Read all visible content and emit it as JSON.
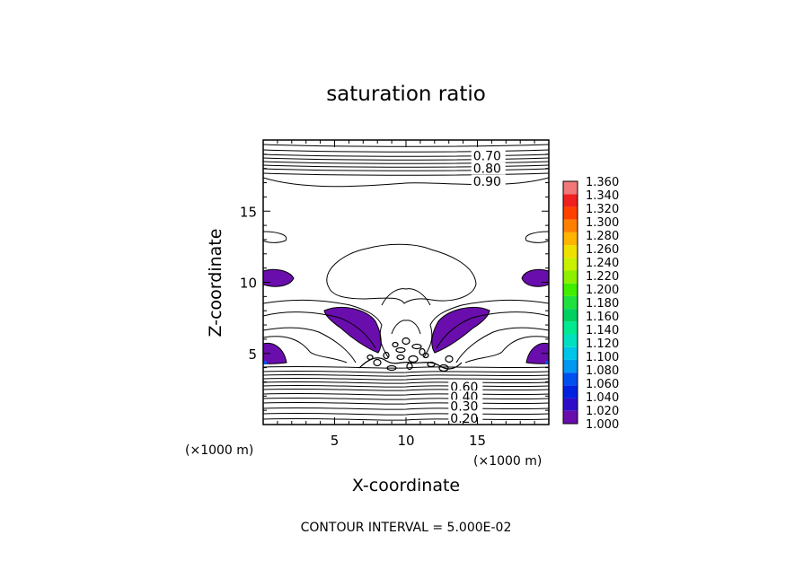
{
  "chart_data": {
    "type": "contour",
    "title": "saturation ratio",
    "xlabel": "X-coordinate",
    "ylabel": "Z-coordinate",
    "x_unit": "(×1000 m)",
    "z_unit": "(×1000 m)",
    "xlim": [
      0,
      20
    ],
    "ylim": [
      0,
      20
    ],
    "x_ticks": [
      5,
      10,
      15
    ],
    "y_ticks": [
      5,
      10,
      15
    ],
    "footer": "CONTOUR INTERVAL = 5.000E-02",
    "contour_labels": [
      {
        "text": "0.70",
        "x": 14.7,
        "z": 18.9
      },
      {
        "text": "0.80",
        "x": 14.7,
        "z": 18.0
      },
      {
        "text": "0.90",
        "x": 14.7,
        "z": 17.1
      },
      {
        "text": "0.60",
        "x": 13.1,
        "z": 2.65
      },
      {
        "text": "0.40",
        "x": 13.1,
        "z": 1.95
      },
      {
        "text": "0.30",
        "x": 13.1,
        "z": 1.3
      },
      {
        "text": "0.20",
        "x": 13.1,
        "z": 0.45
      }
    ],
    "colorbar": {
      "levels": [
        "1.000",
        "1.020",
        "1.040",
        "1.060",
        "1.080",
        "1.100",
        "1.120",
        "1.140",
        "1.160",
        "1.180",
        "1.200",
        "1.220",
        "1.240",
        "1.260",
        "1.280",
        "1.300",
        "1.320",
        "1.340",
        "1.360"
      ],
      "colors": [
        "#6a0dad",
        "#2f0dc8",
        "#0022e0",
        "#0050f0",
        "#0098f0",
        "#00c4e8",
        "#00e0c0",
        "#00e890",
        "#00d060",
        "#20e040",
        "#40ee00",
        "#8cf000",
        "#c8f000",
        "#f0e000",
        "#ffb400",
        "#ff8000",
        "#ff4000",
        "#f02020",
        "#f07878"
      ]
    }
  }
}
